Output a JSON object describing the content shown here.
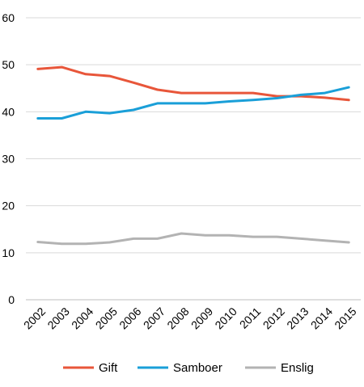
{
  "chart_data": {
    "type": "line",
    "title": "",
    "xlabel": "",
    "ylabel": "",
    "categories": [
      "2002",
      "2003",
      "2004",
      "2005",
      "2006",
      "2007",
      "2008",
      "2009",
      "2010",
      "2011",
      "2012",
      "2013",
      "2014",
      "2015"
    ],
    "ylim": [
      0,
      60
    ],
    "yticks": [
      0,
      10,
      20,
      30,
      40,
      50,
      60
    ],
    "ytick_labels": [
      "0",
      "10",
      "20",
      "30",
      "40",
      "50",
      "60"
    ],
    "grid": true,
    "legend_position": "bottom",
    "series": [
      {
        "name": "Gift",
        "color": "#e8563a",
        "values": [
          49.1,
          49.5,
          48.0,
          47.6,
          46.2,
          44.7,
          44.0,
          44.0,
          44.0,
          44.0,
          43.3,
          43.3,
          43.0,
          42.5
        ]
      },
      {
        "name": "Samboer",
        "color": "#1a9fd8",
        "values": [
          38.6,
          38.6,
          40.0,
          39.7,
          40.4,
          41.8,
          41.8,
          41.8,
          42.2,
          42.5,
          42.9,
          43.6,
          44.0,
          45.2
        ]
      },
      {
        "name": "Enslig",
        "color": "#b3b3b3",
        "values": [
          12.3,
          11.9,
          11.9,
          12.2,
          13.0,
          13.0,
          14.1,
          13.7,
          13.7,
          13.4,
          13.4,
          13.0,
          12.6,
          12.2
        ]
      }
    ]
  }
}
